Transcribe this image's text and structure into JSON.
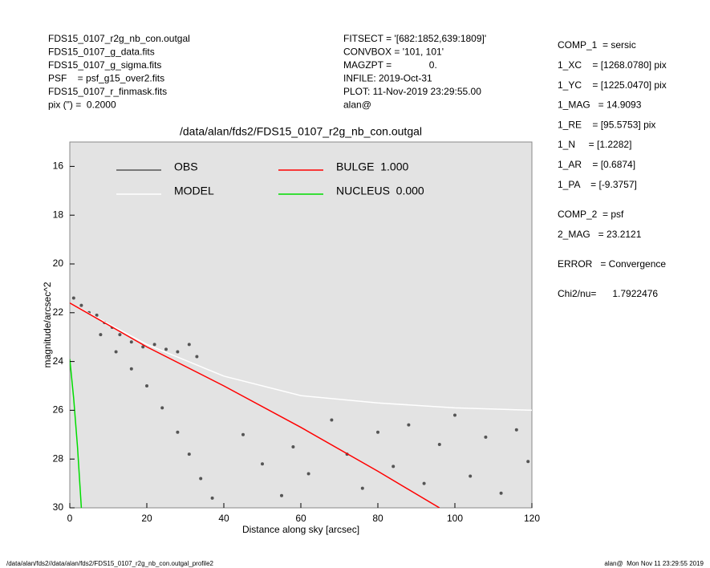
{
  "header_left": [
    "FDS15_0107_r2g_nb_con.outgal",
    "FDS15_0107_g_data.fits",
    "FDS15_0107_g_sigma.fits",
    "PSF    = psf_g15_over2.fits",
    "FDS15_0107_r_finmask.fits",
    "pix (\") =  0.2000"
  ],
  "header_middle": [
    "FITSECT = '[682:1852,639:1809]'",
    "CONVBOX = '101, 101'",
    "MAGZPT =              0.",
    "INFILE: 2019-Oct-31",
    "PLOT: 11-Nov-2019 23:29:55.00",
    "alan@"
  ],
  "fit_info": [
    [
      "COMP_1  = sersic",
      "1_XC    = [1268.0780] pix",
      "1_YC    = [1225.0470] pix",
      "1_MAG   = 14.9093",
      "1_RE    = [95.5753] pix",
      "1_N     = [1.2282]",
      "1_AR    = [0.6874]",
      "1_PA    = [-9.3757]"
    ],
    [
      "COMP_2  = psf",
      "2_MAG   = 23.2121"
    ],
    [
      "ERROR   = Convergence"
    ],
    [
      "Chi2/nu=      1.7922476"
    ]
  ],
  "footer_left": "/data/alan/fds2//data/alan/fds2/FDS15_0107_r2g_nb_con.outgal_profile2",
  "footer_right": "alan@  Mon Nov 11 23:29:55 2019",
  "chart_data": {
    "type": "scatter",
    "title": "/data/alan/fds2/FDS15_0107_r2g_nb_con.outgal",
    "x_label": "Distance along sky [arcsec]",
    "y_label": "magnitude/arcsec^2",
    "xlim": [
      0,
      120
    ],
    "xticks": [
      0,
      20,
      40,
      60,
      80,
      100,
      120
    ],
    "ylim": [
      30,
      15
    ],
    "yticks": [
      16,
      18,
      20,
      22,
      24,
      26,
      28,
      30
    ],
    "series": [
      {
        "name": "OBS",
        "color": "#555555",
        "mode": "markers",
        "x": [
          1,
          3,
          5,
          7,
          9,
          11,
          13,
          16,
          19,
          22,
          25,
          28,
          31,
          33,
          8,
          12,
          16,
          20,
          24,
          28,
          31,
          34,
          37,
          45,
          50,
          55,
          58,
          62,
          68,
          72,
          76,
          80,
          84,
          88,
          92,
          96,
          100,
          104,
          108,
          112,
          116,
          119
        ],
        "values": [
          21.4,
          21.7,
          22.0,
          22.1,
          22.4,
          22.6,
          22.9,
          23.2,
          23.4,
          23.3,
          23.5,
          23.6,
          23.3,
          23.8,
          22.9,
          23.6,
          24.3,
          25.0,
          25.9,
          26.9,
          27.8,
          28.8,
          29.6,
          27.0,
          28.2,
          29.5,
          27.5,
          28.6,
          26.4,
          27.8,
          29.2,
          26.9,
          28.3,
          26.6,
          29.0,
          27.4,
          26.2,
          28.7,
          27.1,
          29.4,
          26.8,
          28.1
        ]
      },
      {
        "name": "MODEL",
        "color": "#ffffff",
        "mode": "line",
        "x": [
          0,
          20,
          40,
          60,
          80,
          100,
          120
        ],
        "values": [
          21.6,
          23.3,
          24.6,
          25.4,
          25.7,
          25.9,
          26.0
        ]
      },
      {
        "name": "BULGE  1.000",
        "color": "#ff0000",
        "mode": "line",
        "x": [
          0,
          20,
          40,
          60,
          80,
          96
        ],
        "values": [
          21.6,
          23.4,
          25.0,
          26.7,
          28.5,
          30
        ]
      },
      {
        "name": "NUCLEUS  0.000",
        "color": "#00dd00",
        "mode": "line",
        "x": [
          0,
          1,
          2,
          3
        ],
        "values": [
          23.9,
          25.5,
          27.5,
          30
        ]
      }
    ]
  }
}
